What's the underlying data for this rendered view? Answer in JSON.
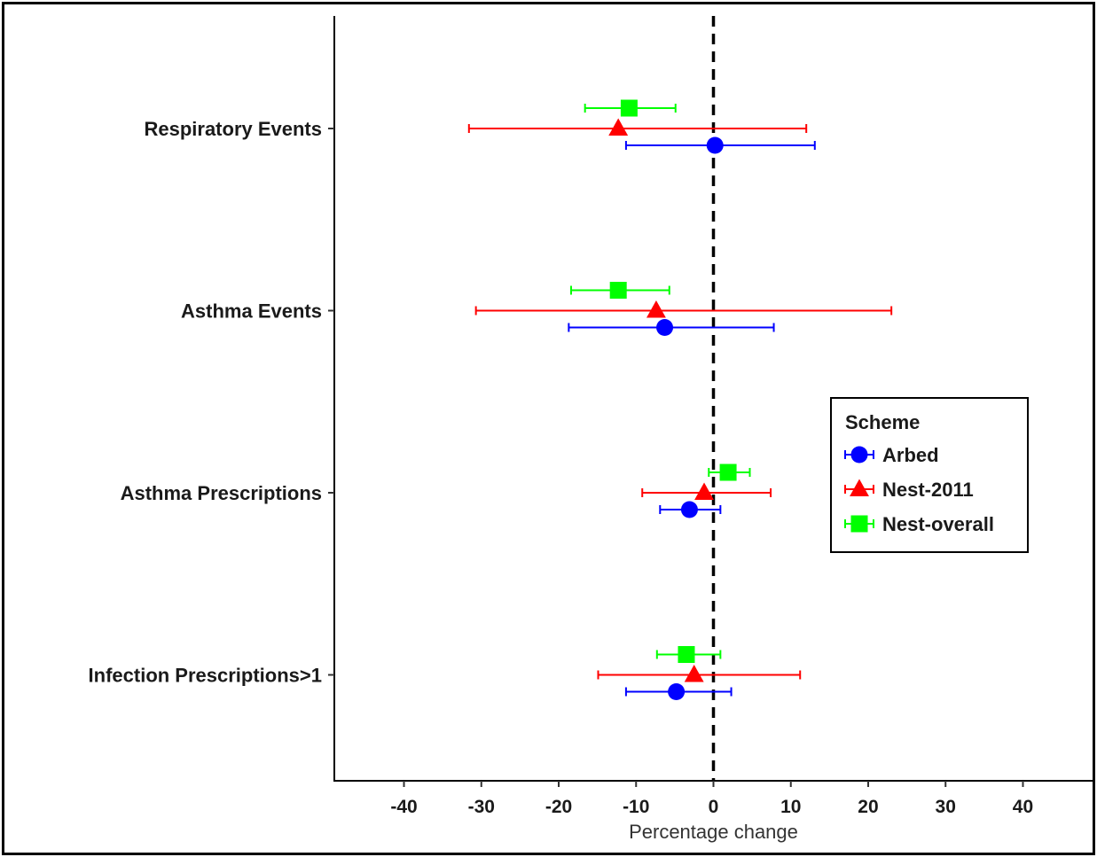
{
  "chart_data": {
    "type": "forest",
    "xlabel": "Percentage change",
    "xlim": [
      -49,
      49
    ],
    "xticks": [
      -40,
      -30,
      -20,
      -10,
      0,
      10,
      20,
      30,
      40
    ],
    "xtick_labels": [
      "-40",
      "-30",
      "-20",
      "-10",
      "0",
      "10",
      "20",
      "30",
      "40"
    ],
    "reference_line": 0,
    "grid": false,
    "categories": [
      "Respiratory Events",
      "Asthma Events",
      "Asthma Prescriptions",
      "Infection Prescriptions>1"
    ],
    "legend": {
      "title": "Scheme",
      "placement": "right",
      "entries": [
        "Arbed",
        "Nest-2011",
        "Nest-overall"
      ]
    },
    "series": [
      {
        "name": "Arbed",
        "color": "#0000ff",
        "marker": "circle",
        "estimates": [
          0.2,
          -6.3,
          -3.1,
          -4.8
        ],
        "lower": [
          -11.3,
          -18.7,
          -6.9,
          -11.3
        ],
        "upper": [
          13.1,
          7.8,
          0.9,
          2.3
        ]
      },
      {
        "name": "Nest-2011",
        "color": "#ff0000",
        "marker": "triangle",
        "estimates": [
          -12.3,
          -7.4,
          -1.2,
          -2.5
        ],
        "lower": [
          -31.6,
          -30.7,
          -9.2,
          -14.9
        ],
        "upper": [
          12.0,
          23.0,
          7.4,
          11.2
        ]
      },
      {
        "name": "Nest-overall",
        "color": "#00ff00",
        "marker": "square",
        "estimates": [
          -10.9,
          -12.3,
          1.9,
          -3.5
        ],
        "lower": [
          -16.6,
          -18.4,
          -0.6,
          -7.3
        ],
        "upper": [
          -4.9,
          -5.7,
          4.7,
          0.9
        ]
      }
    ]
  }
}
